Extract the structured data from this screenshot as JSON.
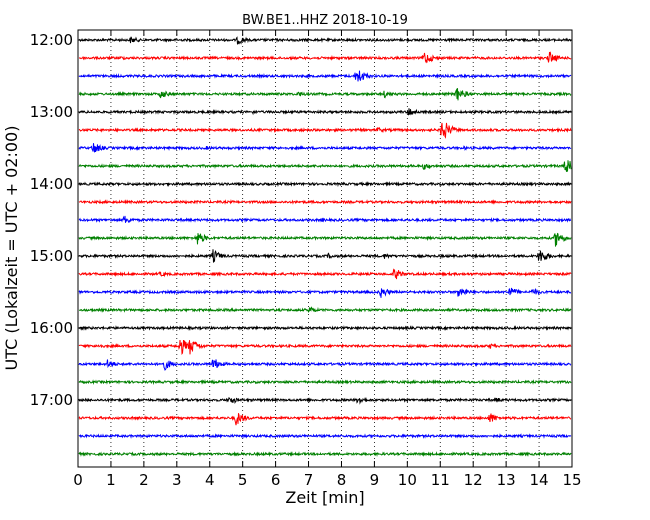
{
  "chart_data": {
    "type": "line",
    "title": "BW.BE1..HHZ 2018-10-19",
    "xlabel": "Zeit  [min]",
    "ylabel": "UTC (Lokalzeit = UTC + 02:00)",
    "xlim": [
      0,
      15
    ],
    "x_ticks": [
      0,
      1,
      2,
      3,
      4,
      5,
      6,
      7,
      8,
      9,
      10,
      11,
      12,
      13,
      14,
      15
    ],
    "x_tick_labels": [
      "0",
      "1",
      "2",
      "3",
      "4",
      "5",
      "6",
      "7",
      "8",
      "9",
      "10",
      "11",
      "12",
      "13",
      "14",
      "15"
    ],
    "y_tick_labels": [
      "12:00",
      "13:00",
      "14:00",
      "15:00",
      "16:00",
      "17:00"
    ],
    "grid": {
      "x": "dotted",
      "y": "none"
    },
    "colors": [
      "#000000",
      "#ff0000",
      "#0000ff",
      "#008000"
    ],
    "traces": [
      {
        "start": "12:00",
        "events": [
          [
            1.6,
            4
          ],
          [
            4.85,
            5
          ],
          [
            6.5,
            2
          ]
        ]
      },
      {
        "start": "12:15",
        "events": [
          [
            10.5,
            8
          ],
          [
            14.3,
            7
          ],
          [
            1.3,
            2
          ]
        ]
      },
      {
        "start": "12:30",
        "events": [
          [
            8.45,
            10
          ]
        ]
      },
      {
        "start": "12:45",
        "events": [
          [
            2.5,
            5
          ],
          [
            6.7,
            3
          ],
          [
            9.3,
            4
          ],
          [
            11.5,
            8
          ]
        ]
      },
      {
        "start": "13:00",
        "events": [
          [
            10.05,
            5
          ],
          [
            5.3,
            2
          ]
        ]
      },
      {
        "start": "13:15",
        "events": [
          [
            11.05,
            13
          ],
          [
            9.1,
            3
          ]
        ]
      },
      {
        "start": "13:30",
        "events": [
          [
            0.45,
            7
          ],
          [
            3.9,
            2
          ],
          [
            11.7,
            2
          ]
        ]
      },
      {
        "start": "13:45",
        "events": [
          [
            10.5,
            4
          ],
          [
            14.8,
            9
          ]
        ]
      },
      {
        "start": "14:00",
        "events": [
          [
            4.9,
            2
          ]
        ]
      },
      {
        "start": "14:15",
        "events": []
      },
      {
        "start": "14:30",
        "events": [
          [
            1.4,
            5
          ],
          [
            7.4,
            2
          ]
        ]
      },
      {
        "start": "14:45",
        "events": [
          [
            3.6,
            8
          ],
          [
            14.5,
            9
          ]
        ]
      },
      {
        "start": "15:00",
        "events": [
          [
            4.1,
            7
          ],
          [
            9.3,
            3
          ],
          [
            14.0,
            9
          ],
          [
            7.6,
            3
          ]
        ]
      },
      {
        "start": "15:15",
        "events": [
          [
            9.6,
            7
          ],
          [
            2.5,
            3
          ]
        ]
      },
      {
        "start": "15:30",
        "events": [
          [
            9.2,
            6
          ],
          [
            11.55,
            7
          ],
          [
            13.1,
            6
          ],
          [
            13.8,
            4
          ]
        ]
      },
      {
        "start": "15:45",
        "events": [
          [
            7.0,
            4
          ]
        ]
      },
      {
        "start": "16:00",
        "events": []
      },
      {
        "start": "16:15",
        "events": [
          [
            3.1,
            10
          ],
          [
            3.4,
            9
          ],
          [
            0.6,
            3
          ],
          [
            12.5,
            3
          ]
        ]
      },
      {
        "start": "16:30",
        "events": [
          [
            0.9,
            5
          ],
          [
            2.6,
            7
          ],
          [
            4.1,
            7
          ]
        ]
      },
      {
        "start": "16:45",
        "events": []
      },
      {
        "start": "17:00",
        "events": [
          [
            4.6,
            5
          ],
          [
            8.5,
            5
          ],
          [
            12.7,
            3
          ]
        ]
      },
      {
        "start": "17:15",
        "events": [
          [
            4.8,
            8
          ],
          [
            12.5,
            6
          ]
        ]
      },
      {
        "start": "17:30",
        "events": []
      },
      {
        "start": "17:45",
        "events": []
      }
    ]
  }
}
